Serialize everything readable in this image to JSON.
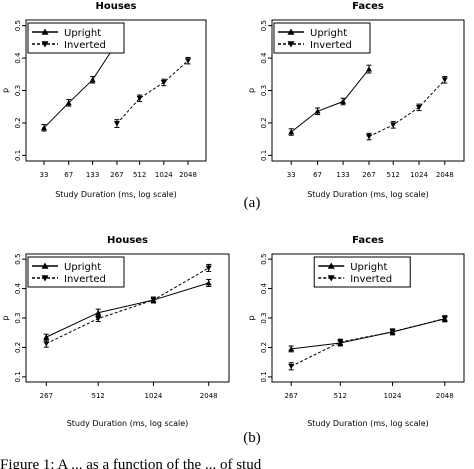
{
  "panel_labels": [
    "(a)",
    "(b)"
  ],
  "caption": "Figure 1: A ... as a function of the ... of stud",
  "chart_data": [
    {
      "type": "line",
      "title": "Houses",
      "xlabel": "Study Duration (ms, log scale)",
      "ylabel": "p",
      "x_scale": "log",
      "x_ticks": [
        33,
        67,
        133,
        267,
        512,
        1024,
        2048
      ],
      "ylim": [
        0.1,
        0.5
      ],
      "y_ticks": [
        0.1,
        0.2,
        0.3,
        0.4,
        0.5
      ],
      "legend": "top-left",
      "series": [
        {
          "name": "Upright",
          "marker": "triangle-up",
          "line": "solid",
          "x": [
            33,
            67,
            133,
            267
          ],
          "y": [
            0.185,
            0.262,
            0.333,
            0.448
          ],
          "err": [
            0.01,
            0.01,
            0.01,
            0.01
          ]
        },
        {
          "name": "Inverted",
          "marker": "triangle-down",
          "line": "dashed",
          "x": [
            267,
            512,
            1024,
            2048
          ],
          "y": [
            0.198,
            0.276,
            0.325,
            0.392
          ],
          "err": [
            0.012,
            0.01,
            0.01,
            0.01
          ]
        }
      ]
    },
    {
      "type": "line",
      "title": "Faces",
      "xlabel": "Study Duration (ms, log scale)",
      "ylabel": "p",
      "x_scale": "log",
      "x_ticks": [
        33,
        67,
        133,
        267,
        512,
        1024,
        2048
      ],
      "ylim": [
        0.1,
        0.5
      ],
      "y_ticks": [
        0.1,
        0.2,
        0.3,
        0.4,
        0.5
      ],
      "legend": "top-left",
      "series": [
        {
          "name": "Upright",
          "marker": "triangle-up",
          "line": "solid",
          "x": [
            33,
            67,
            133,
            267
          ],
          "y": [
            0.172,
            0.236,
            0.266,
            0.366
          ],
          "err": [
            0.01,
            0.01,
            0.01,
            0.012
          ]
        },
        {
          "name": "Inverted",
          "marker": "triangle-down",
          "line": "dashed",
          "x": [
            267,
            512,
            1024,
            2048
          ],
          "y": [
            0.158,
            0.194,
            0.248,
            0.333
          ],
          "err": [
            0.01,
            0.01,
            0.01,
            0.01
          ]
        }
      ]
    },
    {
      "type": "line",
      "title": "Houses",
      "xlabel": "Study Duration (ms, log scale)",
      "ylabel": "p",
      "x_scale": "log",
      "x_ticks": [
        267,
        512,
        1024,
        2048
      ],
      "ylim": [
        0.1,
        0.5
      ],
      "y_ticks": [
        0.1,
        0.2,
        0.3,
        0.4,
        0.5
      ],
      "legend": "top-left",
      "series": [
        {
          "name": "Upright",
          "marker": "triangle-up",
          "line": "solid",
          "x": [
            267,
            512,
            1024,
            2048
          ],
          "y": [
            0.235,
            0.318,
            0.361,
            0.419
          ],
          "err": [
            0.01,
            0.012,
            0.01,
            0.012
          ]
        },
        {
          "name": "Inverted",
          "marker": "triangle-down",
          "line": "dashed",
          "x": [
            267,
            512,
            1024,
            2048
          ],
          "y": [
            0.213,
            0.298,
            0.361,
            0.47
          ],
          "err": [
            0.012,
            0.01,
            0.01,
            0.012
          ]
        }
      ]
    },
    {
      "type": "line",
      "title": "Faces",
      "xlabel": "Study Duration (ms, log scale)",
      "ylabel": "p",
      "x_scale": "log",
      "x_ticks": [
        267,
        512,
        1024,
        2048
      ],
      "ylim": [
        0.1,
        0.5
      ],
      "y_ticks": [
        0.1,
        0.2,
        0.3,
        0.4,
        0.5
      ],
      "legend": "top-right",
      "series": [
        {
          "name": "Upright",
          "marker": "triangle-up",
          "line": "solid",
          "x": [
            267,
            512,
            1024,
            2048
          ],
          "y": [
            0.195,
            0.215,
            0.253,
            0.297
          ],
          "err": [
            0.01,
            0.01,
            0.01,
            0.01
          ]
        },
        {
          "name": "Inverted",
          "marker": "triangle-down",
          "line": "dashed",
          "x": [
            267,
            512,
            1024,
            2048
          ],
          "y": [
            0.136,
            0.218,
            0.253,
            0.298
          ],
          "err": [
            0.012,
            0.01,
            0.01,
            0.01
          ]
        }
      ]
    }
  ]
}
